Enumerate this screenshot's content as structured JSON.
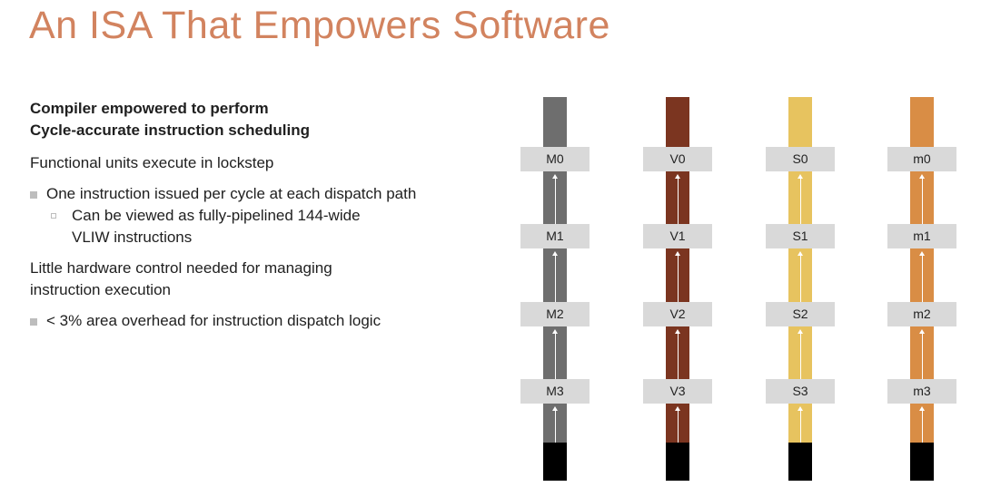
{
  "slide": {
    "title": "An ISA That Empowers Software"
  },
  "content": {
    "heading_line1": "Compiler empowered to perform",
    "heading_line2": "Cycle-accurate instruction scheduling",
    "para1": "Functional units execute in lockstep",
    "bullet1": "One instruction issued per cycle at each dispatch path",
    "subbullet1_line1": "Can be viewed as fully-pipelined 144-wide",
    "subbullet1_line2": "VLIW instructions",
    "para2_line1": "Little hardware control needed for managing",
    "para2_line2": "instruction execution",
    "bullet2": "< 3% area overhead for instruction dispatch logic"
  },
  "diagram": {
    "columns": [
      {
        "color": "#6e6e6e",
        "labels": [
          "M0",
          "M1",
          "M2",
          "M3"
        ]
      },
      {
        "color": "#7b3520",
        "labels": [
          "V0",
          "V1",
          "V2",
          "V3"
        ]
      },
      {
        "color": "#e7c35f",
        "labels": [
          "S0",
          "S1",
          "S2",
          "S3"
        ]
      },
      {
        "color": "#d98d45",
        "labels": [
          "m0",
          "m1",
          "m2",
          "m3"
        ]
      }
    ],
    "base_color": "#000000"
  }
}
